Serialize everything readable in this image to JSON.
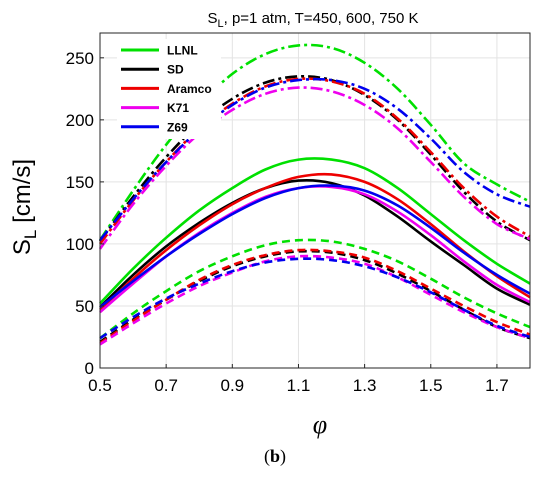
{
  "caption": {
    "open": "(",
    "letter": "b",
    "close": ")"
  },
  "chart_data": {
    "type": "line",
    "title": {
      "main": "S",
      "sub": "L",
      "rest": ", p=1 atm, T=450, 600, 750 K"
    },
    "ylabel": {
      "main": "S",
      "sub": "L",
      "rest": " [cm/s]"
    },
    "xlabel": "φ",
    "xlim": [
      0.5,
      1.8
    ],
    "ylim": [
      0,
      270
    ],
    "xticks": [
      0.5,
      0.7,
      0.9,
      1.1,
      1.3,
      1.5,
      1.7
    ],
    "xtick_labels": [
      "0.5",
      "0.7",
      "0.9",
      "1.1",
      "1.3",
      "1.5",
      "1.7"
    ],
    "yticks": [
      0,
      50,
      100,
      150,
      200,
      250
    ],
    "ytick_labels": [
      "0",
      "50",
      "100",
      "150",
      "200",
      "250"
    ],
    "grid": true,
    "legend": {
      "placement": "top-left"
    },
    "mechanisms": [
      {
        "name": "LLNL",
        "color": "#00e000"
      },
      {
        "name": "SD",
        "color": "#000000"
      },
      {
        "name": "Aramco",
        "color": "#ee0000"
      },
      {
        "name": "K71",
        "color": "#ee00ee"
      },
      {
        "name": "Z69",
        "color": "#0000ee"
      }
    ],
    "temperatures": [
      {
        "T": 450,
        "dash": "dashed"
      },
      {
        "T": 600,
        "dash": "solid"
      },
      {
        "T": 750,
        "dash": "dashdot"
      }
    ],
    "x": [
      0.5,
      0.6,
      0.7,
      0.8,
      0.9,
      1.0,
      1.1,
      1.2,
      1.3,
      1.4,
      1.5,
      1.6,
      1.7,
      1.8
    ],
    "series": [
      {
        "mechanism": "LLNL",
        "T": 450,
        "values": [
          24,
          44,
          62,
          78,
          90,
          99,
          103,
          102,
          96,
          86,
          72,
          57,
          44,
          33
        ]
      },
      {
        "mechanism": "SD",
        "T": 450,
        "values": [
          21,
          39,
          55,
          70,
          82,
          90,
          94,
          93,
          87,
          76,
          62,
          47,
          33,
          24
        ]
      },
      {
        "mechanism": "Aramco",
        "T": 450,
        "values": [
          20,
          38,
          55,
          71,
          83,
          91,
          95,
          94,
          89,
          78,
          64,
          50,
          37,
          27
        ]
      },
      {
        "mechanism": "K71",
        "T": 450,
        "values": [
          19,
          36,
          52,
          66,
          77,
          86,
          90,
          89,
          84,
          73,
          59,
          45,
          33,
          24
        ]
      },
      {
        "mechanism": "Z69",
        "T": 450,
        "values": [
          24,
          41,
          56,
          68,
          78,
          85,
          88,
          87,
          82,
          73,
          61,
          47,
          34,
          25
        ]
      },
      {
        "mechanism": "LLNL",
        "T": 600,
        "values": [
          52,
          80,
          105,
          127,
          145,
          160,
          168,
          168,
          161,
          145,
          124,
          103,
          84,
          68
        ]
      },
      {
        "mechanism": "SD",
        "T": 600,
        "values": [
          49,
          75,
          98,
          117,
          133,
          145,
          151,
          149,
          139,
          122,
          102,
          83,
          64,
          51
        ]
      },
      {
        "mechanism": "Aramco",
        "T": 600,
        "values": [
          47,
          72,
          95,
          115,
          132,
          145,
          154,
          156,
          150,
          136,
          116,
          94,
          74,
          57
        ]
      },
      {
        "mechanism": "K71",
        "T": 600,
        "values": [
          45,
          68,
          90,
          109,
          125,
          138,
          145,
          146,
          140,
          126,
          107,
          86,
          67,
          53
        ]
      },
      {
        "mechanism": "Z69",
        "T": 600,
        "values": [
          49,
          70,
          90,
          108,
          124,
          137,
          145,
          147,
          143,
          131,
          113,
          93,
          75,
          60
        ]
      },
      {
        "mechanism": "LLNL",
        "T": 750,
        "values": [
          103,
          143,
          180,
          212,
          237,
          253,
          260,
          258,
          246,
          225,
          196,
          165,
          148,
          134
        ]
      },
      {
        "mechanism": "SD",
        "T": 750,
        "values": [
          102,
          138,
          170,
          197,
          217,
          230,
          235,
          232,
          220,
          200,
          172,
          142,
          118,
          103
        ]
      },
      {
        "mechanism": "Aramco",
        "T": 750,
        "values": [
          100,
          135,
          166,
          193,
          213,
          227,
          233,
          231,
          221,
          201,
          174,
          145,
          122,
          106
        ]
      },
      {
        "mechanism": "K71",
        "T": 750,
        "values": [
          96,
          132,
          163,
          189,
          208,
          221,
          226,
          223,
          212,
          193,
          166,
          138,
          116,
          104
        ]
      },
      {
        "mechanism": "Z69",
        "T": 750,
        "values": [
          103,
          136,
          166,
          192,
          212,
          226,
          232,
          232,
          225,
          209,
          185,
          158,
          140,
          130
        ]
      }
    ]
  }
}
